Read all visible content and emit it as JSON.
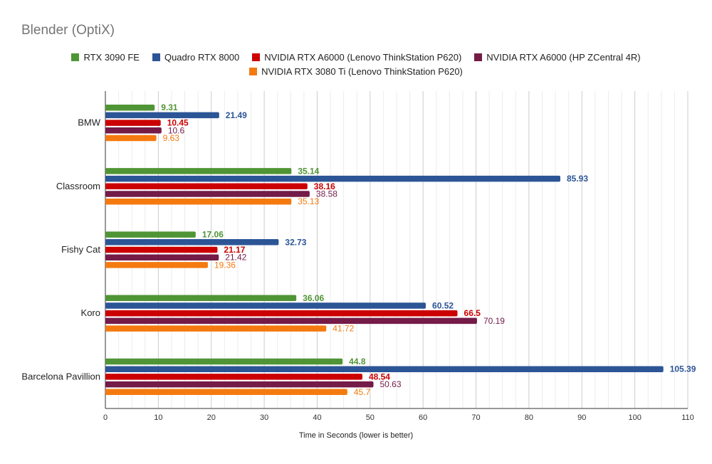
{
  "chart_data": {
    "type": "bar",
    "orientation": "horizontal",
    "title": "Blender (OptiX)",
    "xlabel": "Time in Seconds (lower is better)",
    "ylabel": "",
    "xlim": [
      0,
      110
    ],
    "xticks": [
      0,
      10,
      20,
      30,
      40,
      50,
      60,
      70,
      80,
      90,
      100,
      110
    ],
    "grid": true,
    "legend_position": "top",
    "categories": [
      "BMW",
      "Classroom",
      "Fishy Cat",
      "Koro",
      "Barcelona Pavillion"
    ],
    "series": [
      {
        "name": "RTX 3090 FE",
        "color": "#4f9535",
        "values": [
          9.31,
          35.14,
          17.06,
          36.06,
          44.8
        ],
        "labels": [
          "9.31",
          "35.14",
          "17.06",
          "36.06",
          "44.8"
        ],
        "bold": true
      },
      {
        "name": "Quadro RTX 8000",
        "color": "#2c5596",
        "values": [
          21.49,
          85.93,
          32.73,
          60.52,
          105.39
        ],
        "labels": [
          "21.49",
          "85.93",
          "32.73",
          "60.52",
          "105.39"
        ],
        "bold": true
      },
      {
        "name": "NVIDIA RTX A6000 (Lenovo ThinkStation P620)",
        "color": "#cc0000",
        "values": [
          10.45,
          38.16,
          21.17,
          66.5,
          48.54
        ],
        "labels": [
          "10.45",
          "38.16",
          "21.17",
          "66.5",
          "48.54"
        ],
        "bold": true
      },
      {
        "name": "NVIDIA RTX A6000 (HP ZCentral 4R)",
        "color": "#741b47",
        "values": [
          10.6,
          38.58,
          21.42,
          70.19,
          50.63
        ],
        "labels": [
          "10.6",
          "38.58",
          "21.42",
          "70.19",
          "50.63"
        ],
        "bold": false
      },
      {
        "name": "NVIDIA RTX 3080 Ti (Lenovo ThinkStation P620)",
        "color": "#f47a10",
        "values": [
          9.63,
          35.13,
          19.36,
          41.72,
          45.7
        ],
        "labels": [
          "9.63",
          "35.13",
          "19.36",
          "41.72",
          "45.7"
        ],
        "bold": false
      }
    ]
  }
}
